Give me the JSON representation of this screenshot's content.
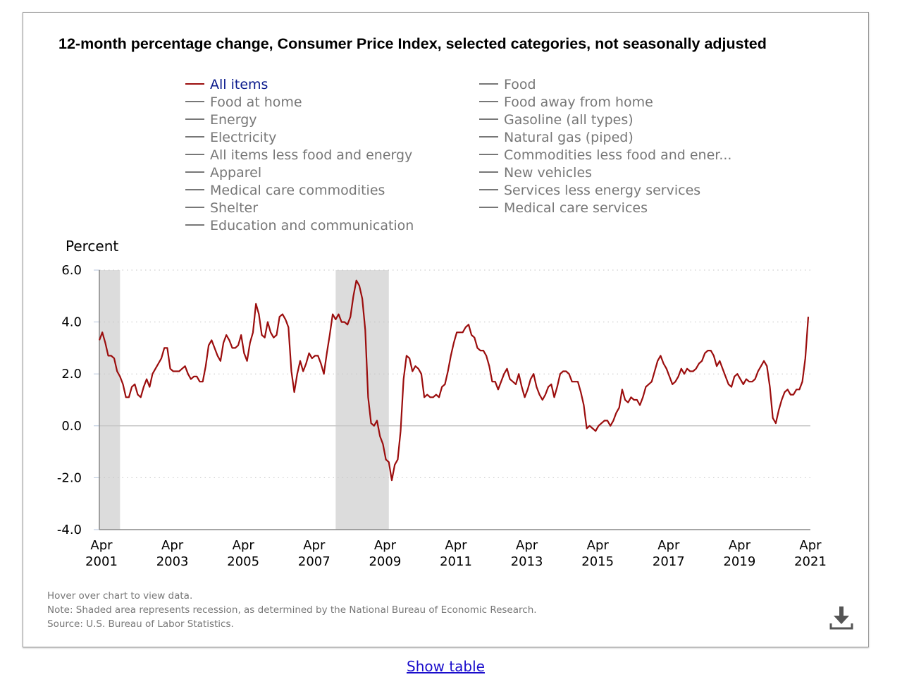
{
  "chart_data": {
    "type": "line",
    "title": "12-month percentage change, Consumer Price Index, selected categories, not seasonally adjusted",
    "ylabel": "Percent",
    "ylim": [
      -4,
      6
    ],
    "yticks": [
      "6.0",
      "4.0",
      "2.0",
      "0.0",
      "-2.0",
      "-4.0"
    ],
    "ytick_values": [
      6,
      4,
      2,
      0,
      -2,
      -4
    ],
    "xticks": [
      [
        "Apr",
        "2001"
      ],
      [
        "Apr",
        "2003"
      ],
      [
        "Apr",
        "2005"
      ],
      [
        "Apr",
        "2007"
      ],
      [
        "Apr",
        "2009"
      ],
      [
        "Apr",
        "2011"
      ],
      [
        "Apr",
        "2013"
      ],
      [
        "Apr",
        "2015"
      ],
      [
        "Apr",
        "2017"
      ],
      [
        "Apr",
        "2019"
      ],
      [
        "Apr",
        "2021"
      ]
    ],
    "x_range": [
      "Apr 2001",
      "Apr 2021"
    ],
    "frequency": "monthly",
    "grid": "horizontal dotted",
    "legend_placement": "top, two columns",
    "recessions": [
      [
        "Apr 2001",
        "Nov 2001"
      ],
      [
        "Dec 2007",
        "Jun 2009"
      ]
    ],
    "legend": {
      "left": [
        "All items",
        "Food at home",
        "Energy",
        "Electricity",
        "All items less food and energy",
        "Apparel",
        "Medical care commodities",
        "Shelter",
        "Education and communication"
      ],
      "right": [
        "Food",
        "Food away from home",
        "Gasoline (all types)",
        "Natural gas (piped)",
        "Commodities less food and ener...",
        "New vehicles",
        "Services less energy services",
        "Medical care services"
      ]
    },
    "active_series": "All items",
    "series": [
      {
        "name": "All items",
        "color": "#9b0d0d",
        "values": [
          3.3,
          3.6,
          3.2,
          2.7,
          2.7,
          2.6,
          2.1,
          1.9,
          1.6,
          1.1,
          1.1,
          1.5,
          1.6,
          1.2,
          1.1,
          1.5,
          1.8,
          1.5,
          2.0,
          2.2,
          2.4,
          2.6,
          3.0,
          3.0,
          2.2,
          2.1,
          2.1,
          2.1,
          2.2,
          2.3,
          2.0,
          1.8,
          1.9,
          1.9,
          1.7,
          1.7,
          2.3,
          3.1,
          3.3,
          3.0,
          2.7,
          2.5,
          3.2,
          3.5,
          3.3,
          3.0,
          3.0,
          3.1,
          3.5,
          2.8,
          2.5,
          3.2,
          3.6,
          4.7,
          4.3,
          3.5,
          3.4,
          4.0,
          3.6,
          3.4,
          3.5,
          4.2,
          4.3,
          4.1,
          3.8,
          2.1,
          1.3,
          2.0,
          2.5,
          2.1,
          2.4,
          2.8,
          2.6,
          2.7,
          2.7,
          2.4,
          2.0,
          2.8,
          3.5,
          4.3,
          4.1,
          4.3,
          4.0,
          4.0,
          3.9,
          4.2,
          5.0,
          5.6,
          5.4,
          4.9,
          3.7,
          1.1,
          0.1,
          0.0,
          0.2,
          -0.4,
          -0.7,
          -1.3,
          -1.4,
          -2.1,
          -1.5,
          -1.3,
          -0.2,
          1.8,
          2.7,
          2.6,
          2.1,
          2.3,
          2.2,
          2.0,
          1.1,
          1.2,
          1.1,
          1.1,
          1.2,
          1.1,
          1.5,
          1.6,
          2.1,
          2.7,
          3.2,
          3.6,
          3.6,
          3.6,
          3.8,
          3.9,
          3.5,
          3.4,
          3.0,
          2.9,
          2.9,
          2.7,
          2.3,
          1.7,
          1.7,
          1.4,
          1.7,
          2.0,
          2.2,
          1.8,
          1.7,
          1.6,
          2.0,
          1.5,
          1.1,
          1.4,
          1.8,
          2.0,
          1.5,
          1.2,
          1.0,
          1.2,
          1.5,
          1.6,
          1.1,
          1.5,
          2.0,
          2.1,
          2.1,
          2.0,
          1.7,
          1.7,
          1.7,
          1.3,
          0.8,
          -0.1,
          0.0,
          -0.1,
          -0.2,
          0.0,
          0.1,
          0.2,
          0.2,
          0.0,
          0.2,
          0.5,
          0.7,
          1.4,
          1.0,
          0.9,
          1.1,
          1.0,
          1.0,
          0.8,
          1.1,
          1.5,
          1.6,
          1.7,
          2.1,
          2.5,
          2.7,
          2.4,
          2.2,
          1.9,
          1.6,
          1.7,
          1.9,
          2.2,
          2.0,
          2.2,
          2.1,
          2.1,
          2.2,
          2.4,
          2.5,
          2.8,
          2.9,
          2.9,
          2.7,
          2.3,
          2.5,
          2.2,
          1.9,
          1.6,
          1.5,
          1.9,
          2.0,
          1.8,
          1.6,
          1.8,
          1.7,
          1.7,
          1.8,
          2.1,
          2.3,
          2.5,
          2.3,
          1.5,
          0.3,
          0.1,
          0.6,
          1.0,
          1.3,
          1.4,
          1.2,
          1.2,
          1.4,
          1.4,
          1.7,
          2.6,
          4.2
        ]
      }
    ]
  },
  "notes": {
    "hover": "Hover over chart to view data.",
    "note": "Note: Shaded area represents recession, as determined by the National Bureau of Economic Research.",
    "source": "Source: U.S. Bureau of Labor Statistics."
  },
  "download_icon": "download-icon",
  "show_table": "Show table"
}
